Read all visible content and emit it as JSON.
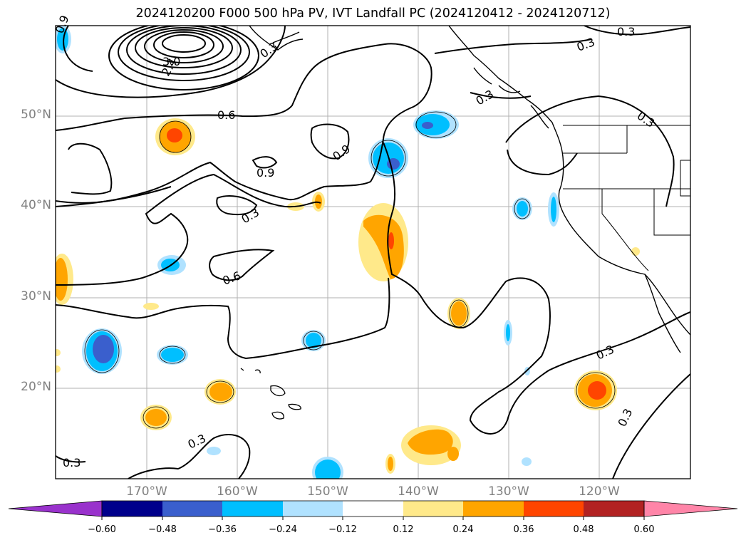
{
  "title": "2024120200 F000 500 hPa PV, IVT Landfall PC (2024120412 - 2024120712)",
  "latitude_labels": [
    "50°N",
    "40°N",
    "30°N",
    "20°N"
  ],
  "longitude_labels": [
    "170°W",
    "160°W",
    "150°W",
    "140°W",
    "130°W",
    "120°W"
  ],
  "contour_labels": [
    "0.9",
    "3.0",
    "2.4",
    "0.3",
    "0.3",
    "0.3",
    "0.6",
    "0.9",
    "0.9",
    "0.3",
    "0.6",
    "0.3",
    "0.3",
    "0.3",
    "0.3",
    "0.3"
  ],
  "colorbar": {
    "ticks": [
      "−0.60",
      "−0.48",
      "−0.36",
      "−0.24",
      "−0.12",
      "0.12",
      "0.24",
      "0.36",
      "0.48",
      "0.60"
    ],
    "colors": [
      "#9932cc",
      "#00008b",
      "#3a5fcd",
      "#00bfff",
      "#b0e2ff",
      "#ffffff",
      "#ffe98a",
      "#ffa500",
      "#ff4500",
      "#b22222",
      "#ff85a8"
    ]
  },
  "map_extent": {
    "lon": [
      -180,
      -110
    ],
    "lat": [
      10,
      60
    ]
  }
}
